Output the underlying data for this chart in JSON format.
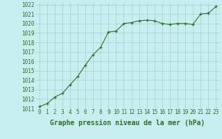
{
  "hours": [
    0,
    1,
    2,
    3,
    4,
    5,
    6,
    7,
    8,
    9,
    10,
    11,
    12,
    13,
    14,
    15,
    16,
    17,
    18,
    19,
    20,
    21,
    22,
    23
  ],
  "pressure": [
    1011.2,
    1011.5,
    1012.2,
    1012.6,
    1013.5,
    1014.4,
    1015.6,
    1016.7,
    1017.5,
    1019.1,
    1019.2,
    1020.0,
    1020.1,
    1020.3,
    1020.35,
    1020.3,
    1020.0,
    1019.9,
    1020.0,
    1020.0,
    1019.9,
    1021.0,
    1021.1,
    1021.8
  ],
  "line_color": "#2d6e2d",
  "marker_color": "#2d6e2d",
  "bg_color": "#c8eef0",
  "grid_color": "#9ecfcf",
  "xlabel": "Graphe pression niveau de la mer (hPa)",
  "xlabel_color": "#2d6e2d",
  "tick_color": "#2d6e2d",
  "ylim": [
    1011,
    1022
  ],
  "xlim": [
    -0.5,
    23.5
  ],
  "yticks": [
    1011,
    1012,
    1013,
    1014,
    1015,
    1016,
    1017,
    1018,
    1019,
    1020,
    1021,
    1022
  ],
  "xticks": [
    0,
    1,
    2,
    3,
    4,
    5,
    6,
    7,
    8,
    9,
    10,
    11,
    12,
    13,
    14,
    15,
    16,
    17,
    18,
    19,
    20,
    21,
    22,
    23
  ],
  "tick_fontsize": 5.5,
  "xlabel_fontsize": 7.0
}
